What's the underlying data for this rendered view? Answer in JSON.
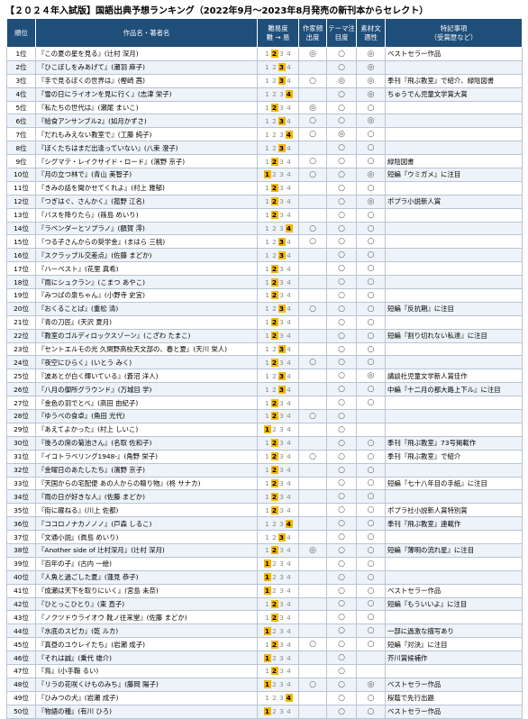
{
  "header": {
    "title": "【２０２４年入試版】国語出典予想ランキング（2022年9月～2023年8月発売の新刊本からセレクト）"
  },
  "table": {
    "columns": {
      "rank": "順位",
      "work": "作品名・著者名",
      "difficulty": "難易度",
      "difficulty_dir": "難 → 易",
      "author": "作家頻出度",
      "theme": "テーマ注目度",
      "material": "素材文適性",
      "notes": "特記事項",
      "notes_sub": "（受賞歴など）"
    },
    "difficulty_scale": [
      1,
      2,
      3,
      4
    ],
    "rows": [
      {
        "rank": "1位",
        "work": "『この夏の星を見る』(辻村 深月)",
        "difficulty": 2,
        "author": "◎",
        "theme": "○",
        "material": "◎",
        "notes": "ベストセラー作品"
      },
      {
        "rank": "2位",
        "work": "『ひこぼしをみあげて』(瀬羽 麻子)",
        "difficulty": 3,
        "author": null,
        "theme": "○",
        "material": "◎",
        "notes": null
      },
      {
        "rank": "3位",
        "work": "『手で見るぼくの世界は』(樫崎 茜)",
        "difficulty": 3,
        "author": "○",
        "theme": "◎",
        "material": "◎",
        "notes": "季刊『飛ぶ教室』で紹介、緑陰図書"
      },
      {
        "rank": "4位",
        "work": "『雪の日にライオンを見に行く』(志津 栄子)",
        "difficulty": 4,
        "author": null,
        "theme": "○",
        "material": "◎",
        "notes": "ちゅうでん児童文学賞大賞"
      },
      {
        "rank": "5位",
        "work": "『私たちの世代は』(瀬尾 まいこ)",
        "difficulty": 2,
        "author": "◎",
        "theme": "○",
        "material": "○",
        "notes": null
      },
      {
        "rank": "6位",
        "work": "『給食アンサンブル2』(如月かずさ)",
        "difficulty": 3,
        "author": "○",
        "theme": "○",
        "material": "◎",
        "notes": null
      },
      {
        "rank": "7位",
        "work": "『だれもみえない教室で』(工藤 純子)",
        "difficulty": 4,
        "author": "○",
        "theme": "◎",
        "material": "○",
        "notes": null
      },
      {
        "rank": "8位",
        "work": "『ぼくたちはまだ出逢っていない』(八束 澄子)",
        "difficulty": 3,
        "author": null,
        "theme": "○",
        "material": "○",
        "notes": null
      },
      {
        "rank": "9位",
        "work": "『シグマテ・レイクサイド・ロード』(濱野 京子)",
        "difficulty": 2,
        "author": "○",
        "theme": "○",
        "material": "○",
        "notes": "緑陰図書"
      },
      {
        "rank": "10位",
        "work": "『月の立つ林で』(青山 美智子)",
        "difficulty": 1,
        "author": "○",
        "theme": "○",
        "material": "◎",
        "notes": "短編『ウミガメ』に注目"
      },
      {
        "rank": "11位",
        "work": "『きみの話を聞かせてくれよ』(村上 雅郁)",
        "difficulty": 2,
        "author": null,
        "theme": "○",
        "material": "○",
        "notes": null
      },
      {
        "rank": "12位",
        "work": "『つぎはぐ、さんかく』(菰野 江名)",
        "difficulty": 2,
        "author": null,
        "theme": "○",
        "material": "◎",
        "notes": "ポプラ小説新人賞"
      },
      {
        "rank": "13位",
        "work": "『バスを降りたら』(篠島 めいり)",
        "difficulty": 2,
        "author": null,
        "theme": "○",
        "material": "○",
        "notes": null
      },
      {
        "rank": "14位",
        "work": "『ラベンダーとソプラノ』(額賀 澪)",
        "difficulty": 4,
        "author": "○",
        "theme": "○",
        "material": "○",
        "notes": null
      },
      {
        "rank": "15位",
        "work": "『つる子さんからの奨学金』(まはら 三桃)",
        "difficulty": 3,
        "author": "○",
        "theme": "○",
        "material": "○",
        "notes": null
      },
      {
        "rank": "16位",
        "work": "『スクラップル交差点』(佐藤 まどか)",
        "difficulty": 3,
        "author": null,
        "theme": "○",
        "material": "○",
        "notes": null
      },
      {
        "rank": "17位",
        "work": "『ハーベスト』(花里 真希)",
        "difficulty": 2,
        "author": null,
        "theme": "○",
        "material": "○",
        "notes": null
      },
      {
        "rank": "18位",
        "work": "『雨にシュクラン』(こまつ あやこ)",
        "difficulty": 2,
        "author": null,
        "theme": "○",
        "material": "○",
        "notes": null
      },
      {
        "rank": "19位",
        "work": "『みつばの泉ちゃん』(小野寺 史宜)",
        "difficulty": 2,
        "author": null,
        "theme": "○",
        "material": "○",
        "notes": null
      },
      {
        "rank": "20位",
        "work": "『おくることば』(重松 清)",
        "difficulty": 3,
        "author": "○",
        "theme": "○",
        "material": "○",
        "notes": "短編『反抗期』に注目"
      },
      {
        "rank": "21位",
        "work": "『青の刀匠』(天沢 夏月)",
        "difficulty": 2,
        "author": null,
        "theme": "○",
        "material": "○",
        "notes": null
      },
      {
        "rank": "22位",
        "work": "『教室のゴルディロックスゾーン』(こざわ たまこ)",
        "difficulty": 2,
        "author": null,
        "theme": "○",
        "material": "○",
        "notes": "短編『割り切れない私達』に注目"
      },
      {
        "rank": "23位",
        "work": "『セントエルモの光 久閑野高校天文部の、春と夏』(天川 栄人)",
        "difficulty": 3,
        "author": null,
        "theme": "○",
        "material": "○",
        "notes": null
      },
      {
        "rank": "24位",
        "work": "『夜空にひらく』(いとう みく)",
        "difficulty": 2,
        "author": "○",
        "theme": "○",
        "material": "○",
        "notes": null
      },
      {
        "rank": "25位",
        "work": "『波あとが白く輝いている』(蒼沼 洋人)",
        "difficulty": 3,
        "author": null,
        "theme": "○",
        "material": "◎",
        "notes": "講談社児童文学新人賞佳作"
      },
      {
        "rank": "26位",
        "work": "『八月の御所グラウンド』(万城目 学)",
        "difficulty": 3,
        "author": null,
        "theme": "○",
        "material": "○",
        "notes": "中編『十二月の都大路上下ル』に注目"
      },
      {
        "rank": "27位",
        "work": "『金色の羽でとべ』(高田 由紀子)",
        "difficulty": 2,
        "author": null,
        "theme": "○",
        "material": "○",
        "notes": null
      },
      {
        "rank": "28位",
        "work": "『ゆうべの食卓』(角田 光代)",
        "difficulty": 2,
        "author": "○",
        "theme": "○",
        "material": null,
        "notes": null
      },
      {
        "rank": "29位",
        "work": "『あえてよかった』(村上 しいこ)",
        "difficulty": 1,
        "author": null,
        "theme": "○",
        "material": null,
        "notes": null
      },
      {
        "rank": "30位",
        "work": "『後ろの席の菊池さん』(名取 佐和子)",
        "difficulty": 2,
        "author": null,
        "theme": "○",
        "material": "○",
        "notes": "季刊『飛ぶ教室』73号掲載作"
      },
      {
        "rank": "31位",
        "work": "『イコトラベリング1948-』(角野 栄子)",
        "difficulty": 2,
        "author": "○",
        "theme": "○",
        "material": "○",
        "notes": "季刊『飛ぶ教室』で紹介"
      },
      {
        "rank": "32位",
        "work": "『金曜日のあたしたち』(濱野 京子)",
        "difficulty": 2,
        "author": null,
        "theme": "○",
        "material": "○",
        "notes": null
      },
      {
        "rank": "33位",
        "work": "『天国からの宅配便 あの人からの贈り物』(柊 サナカ)",
        "difficulty": 2,
        "author": null,
        "theme": "○",
        "material": "○",
        "notes": "短編『七十八年目の手紙』に注目"
      },
      {
        "rank": "34位",
        "work": "『雨の日が好きな人』(佐藤 まどか)",
        "difficulty": 2,
        "author": null,
        "theme": "○",
        "material": "○",
        "notes": null
      },
      {
        "rank": "35位",
        "work": "『街に躍ねる』(川上 佐都)",
        "difficulty": 2,
        "author": null,
        "theme": "○",
        "material": "○",
        "notes": "ポプラ社小説新人賞特別賞"
      },
      {
        "rank": "36位",
        "work": "『ココロノナカノノノ』(戸森 しるこ)",
        "difficulty": 4,
        "author": null,
        "theme": "○",
        "material": "○",
        "notes": "季刊『飛ぶ教室』連載作"
      },
      {
        "rank": "37位",
        "work": "『文通小説』(眞島 めいり)",
        "difficulty": 3,
        "author": null,
        "theme": "○",
        "material": "○",
        "notes": null
      },
      {
        "rank": "38位",
        "work": "『Another side of 辻村深月』(辻村 深月)",
        "difficulty": 2,
        "author": "◎",
        "theme": "○",
        "material": "○",
        "notes": "短編『薄明の流れ星』に注目"
      },
      {
        "rank": "39位",
        "work": "『百年の子』(古内 一絵)",
        "difficulty": 1,
        "author": null,
        "theme": "○",
        "material": "○",
        "notes": null
      },
      {
        "rank": "40位",
        "work": "『人魚と過ごした夏』(蓮見 恭子)",
        "difficulty": 1,
        "author": null,
        "theme": "○",
        "material": "○",
        "notes": null
      },
      {
        "rank": "41位",
        "work": "『成瀬は天下を取りにいく』(宮島 未奈)",
        "difficulty": 1,
        "author": null,
        "theme": "○",
        "material": "○",
        "notes": "ベストセラー作品"
      },
      {
        "rank": "42位",
        "work": "『ひとっこひとり』(東 直子)",
        "difficulty": 2,
        "author": null,
        "theme": "○",
        "material": "○",
        "notes": "短編『もういいよ』に注目"
      },
      {
        "rank": "43位",
        "work": "『ノクツドウライオウ 靴ノ往来堂』(佐藤 まどか)",
        "difficulty": 2,
        "author": null,
        "theme": "○",
        "material": "○",
        "notes": null
      },
      {
        "rank": "44位",
        "work": "『水底のスピカ』(乾 ルカ)",
        "difficulty": 1,
        "author": null,
        "theme": "○",
        "material": "○",
        "notes": "一部に過激な描写あり"
      },
      {
        "rank": "45位",
        "work": "『真昼のユウレイたち』(岩瀬 成子)",
        "difficulty": 2,
        "author": "○",
        "theme": "○",
        "material": "○",
        "notes": "短編『対決』に注目"
      },
      {
        "rank": "46位",
        "work": "『それは誠』(乗代 雄介)",
        "difficulty": 1,
        "author": null,
        "theme": "○",
        "material": null,
        "notes": "芥川賞候補作"
      },
      {
        "rank": "47位",
        "work": "『鳥』(小手鞠 るい)",
        "difficulty": 2,
        "author": null,
        "theme": "○",
        "material": null,
        "notes": null
      },
      {
        "rank": "48位",
        "work": "『リラの花咲くけものみち』(藤岡 陽子)",
        "difficulty": 1,
        "author": "○",
        "theme": "○",
        "material": "◎",
        "notes": "ベストセラー作品"
      },
      {
        "rank": "49位",
        "work": "『ひみつの犬』(岩瀬 成子)",
        "difficulty": 4,
        "author": null,
        "theme": "○",
        "material": "○",
        "notes": "桜蔭で先行出題"
      },
      {
        "rank": "50位",
        "work": "『物語の種』(有川 ひろ)",
        "difficulty": 1,
        "author": null,
        "theme": "○",
        "material": "○",
        "notes": "ベストセラー作品"
      }
    ]
  }
}
